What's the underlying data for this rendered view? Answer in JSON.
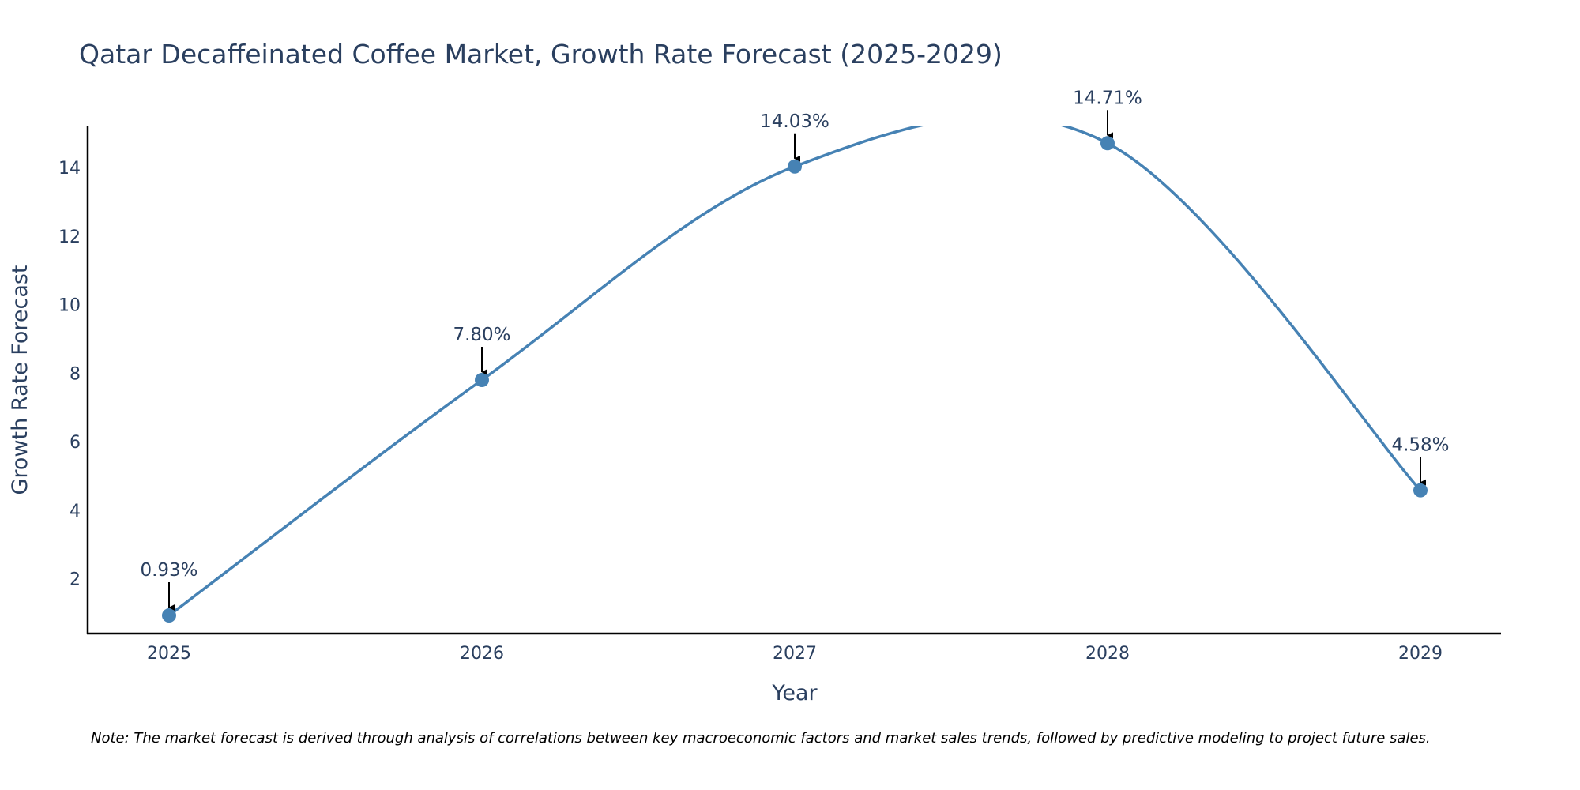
{
  "chart_data": {
    "type": "line",
    "title": "Qatar Decaffeinated Coffee Market, Growth Rate Forecast (2025-2029)",
    "xlabel": "Year",
    "ylabel": "Growth Rate Forecast",
    "categories": [
      "2025",
      "2026",
      "2027",
      "2028",
      "2029"
    ],
    "values": [
      0.93,
      7.8,
      14.03,
      14.71,
      4.58
    ],
    "data_labels": [
      "0.93%",
      "7.80%",
      "14.03%",
      "14.71%",
      "4.58%"
    ],
    "yticks": [
      2,
      4,
      6,
      8,
      10,
      12,
      14
    ],
    "ylim": [
      0.4,
      15.2
    ],
    "grid": false,
    "line_shape": "spline",
    "line_color": "#4682b4",
    "marker_color": "#4682b4",
    "annotation_arrow_color": "#000000",
    "note": "Note: The market forecast is derived through analysis of correlations between key macroeconomic factors and market sales trends, followed by predictive modeling to project future sales."
  }
}
